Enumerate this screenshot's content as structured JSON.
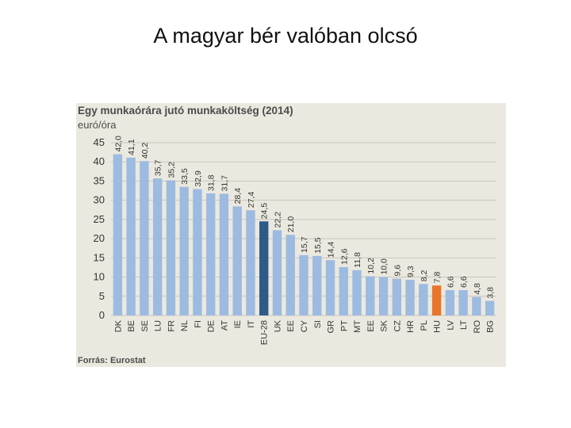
{
  "slide": {
    "title": "A magyar bér valóban olcsó"
  },
  "chart_data": {
    "type": "bar",
    "title": "Egy munkaórára jutó munkaköltség (2014)",
    "ylabel": "euró/óra",
    "source": "Forrás: Eurostat",
    "ylim": [
      0,
      45
    ],
    "yticks": [
      0,
      5,
      10,
      15,
      20,
      25,
      30,
      35,
      40,
      45
    ],
    "grid": true,
    "categories": [
      "DK",
      "BE",
      "SE",
      "LU",
      "FR",
      "NL",
      "FI",
      "DE",
      "AT",
      "IE",
      "IT",
      "EU-28",
      "UK",
      "EE",
      "CY",
      "SI",
      "GR",
      "PT",
      "MT",
      "EE",
      "SK",
      "CZ",
      "HR",
      "PL",
      "HU",
      "LV",
      "LT",
      "RO",
      "BG"
    ],
    "values": [
      42.0,
      41.1,
      40.2,
      35.7,
      35.2,
      33.5,
      32.9,
      31.8,
      31.7,
      28.4,
      27.4,
      24.5,
      22.2,
      21.0,
      15.7,
      15.5,
      14.4,
      12.6,
      11.8,
      10.2,
      10.0,
      9.6,
      9.3,
      8.2,
      7.8,
      6.6,
      6.6,
      4.8,
      3.8
    ],
    "value_labels": [
      "42,0",
      "41,1",
      "40,2",
      "35,7",
      "35,2",
      "33,5",
      "32,9",
      "31,8",
      "31,7",
      "28,4",
      "27,4",
      "24,5",
      "22,2",
      "21,0",
      "15,7",
      "15,5",
      "14,4",
      "12,6",
      "11,8",
      "10,2",
      "10,0",
      "9,6",
      "9,3",
      "8,2",
      "7,8",
      "6,6",
      "6,6",
      "4,8",
      "3,8"
    ],
    "colors": {
      "default": "#9dbbe0",
      "EU-28": "#2e5a8a",
      "HU": "#e8752a",
      "grid": "#c9c7be"
    }
  }
}
